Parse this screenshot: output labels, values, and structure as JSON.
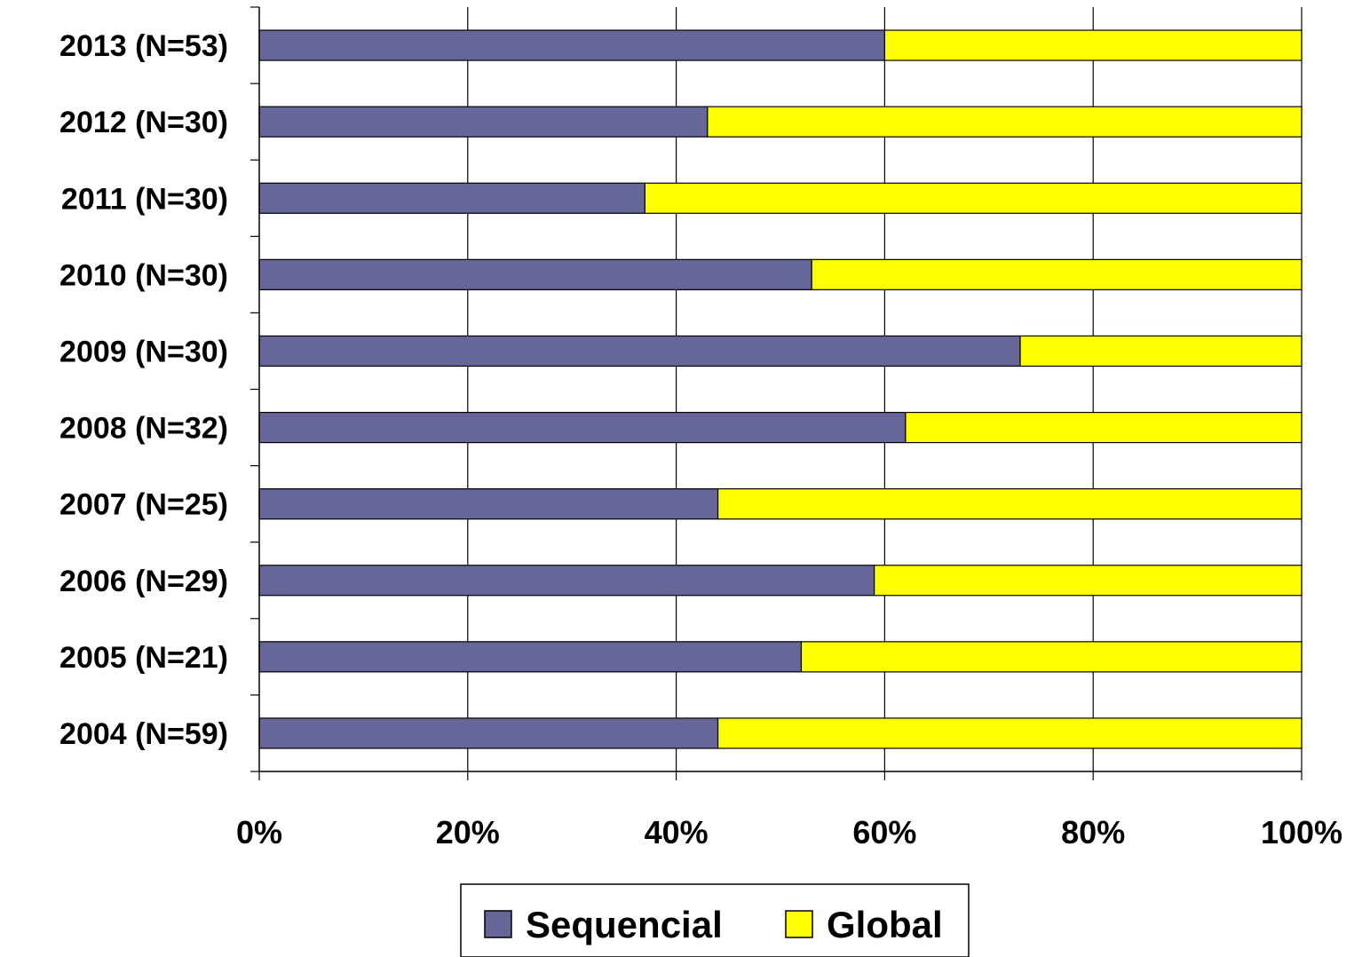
{
  "chart_data": {
    "type": "bar",
    "orientation": "horizontal",
    "stacked": true,
    "percent_stacked": true,
    "categories": [
      "2013 (N=53)",
      "2012 (N=30)",
      "2011 (N=30)",
      "2010 (N=30)",
      "2009 (N=30)",
      "2008 (N=32)",
      "2007 (N=25)",
      "2006 (N=29)",
      "2005 (N=21)",
      "2004 (N=59)"
    ],
    "series": [
      {
        "name": "Sequencial",
        "color": "#666699",
        "values": [
          60,
          43,
          37,
          53,
          73,
          62,
          44,
          59,
          52,
          44
        ]
      },
      {
        "name": "Global",
        "color": "#FFFF00",
        "values": [
          40,
          57,
          63,
          47,
          27,
          38,
          56,
          41,
          48,
          56
        ]
      }
    ],
    "xticks": [
      "0%",
      "20%",
      "40%",
      "60%",
      "80%",
      "100%"
    ],
    "xlim": [
      0,
      100
    ],
    "grid": "vertical",
    "legend": "bottom-center",
    "title": "",
    "xlabel": "",
    "ylabel": ""
  }
}
